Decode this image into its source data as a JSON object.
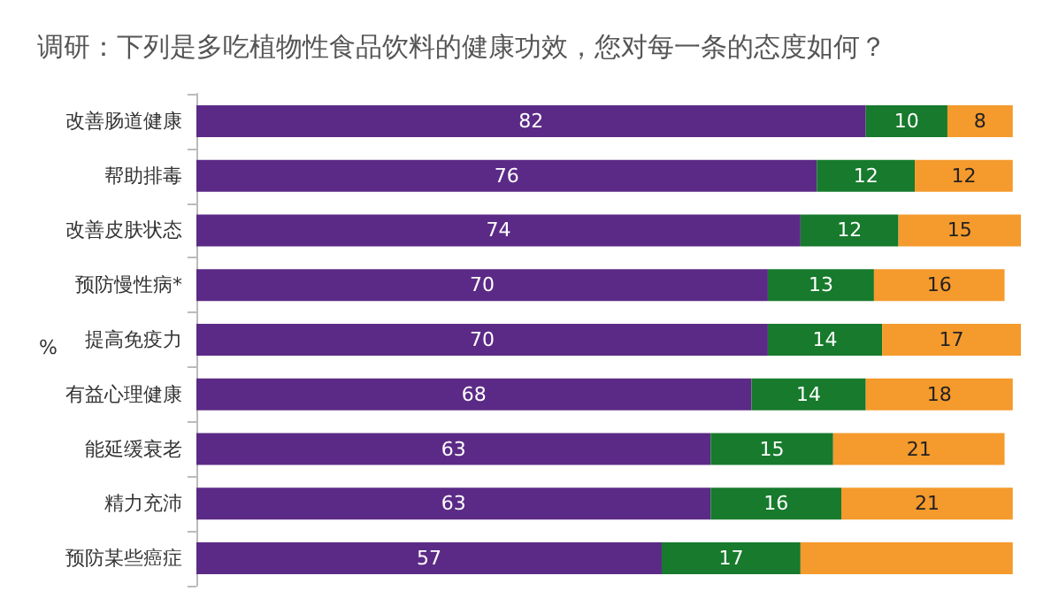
{
  "chart_data": {
    "type": "bar",
    "orientation": "horizontal",
    "stacked": true,
    "title": "调研：下列是多吃植物性食品饮料的健康功效，您对每一条的态度如何？",
    "annotations": [
      "%"
    ],
    "categories": [
      "改善肠道健康",
      "帮助排毒",
      "改善皮肤状态",
      "预防慢性病*",
      "提高免疫力",
      "有益心理健康",
      "能延缓衰老",
      "精力充沛",
      "预防某些癌症"
    ],
    "series": [
      {
        "color": "#5b2a86",
        "values": [
          82,
          76,
          74,
          70,
          70,
          68,
          63,
          63,
          57
        ],
        "value_labels": [
          "82",
          "76",
          "74",
          "70",
          "70",
          "68",
          "63",
          "63",
          "57"
        ]
      },
      {
        "color": "#177a2c",
        "values": [
          10,
          12,
          12,
          13,
          14,
          14,
          15,
          16,
          17
        ],
        "value_labels": [
          "10",
          "12",
          "12",
          "13",
          "14",
          "14",
          "15",
          "16",
          "17"
        ]
      },
      {
        "color": "#f59a2c",
        "values": [
          8,
          12,
          15,
          16,
          17,
          18,
          21,
          21,
          26
        ],
        "value_labels": [
          "8",
          "12",
          "15",
          "16",
          "17",
          "18",
          "21",
          "21",
          null
        ]
      }
    ]
  }
}
